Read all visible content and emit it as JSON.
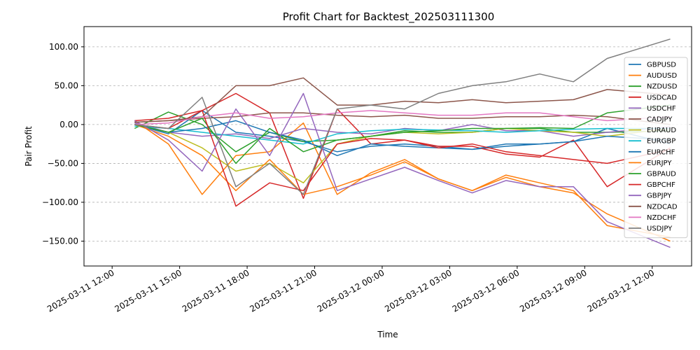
{
  "chart_data": {
    "type": "line",
    "title": "Profit Chart for Backtest_202503111300",
    "xlabel": "Time",
    "ylabel": "Pair Profit",
    "xlim_hours": [
      -1.25,
      25.75
    ],
    "ylim": [
      -182,
      126
    ],
    "grid": true,
    "legend_position": "right",
    "x_ticks": [
      {
        "h": 0,
        "label": "2025-03-11 12:00"
      },
      {
        "h": 3,
        "label": "2025-03-11 15:00"
      },
      {
        "h": 6,
        "label": "2025-03-11 18:00"
      },
      {
        "h": 9,
        "label": "2025-03-11 21:00"
      },
      {
        "h": 12,
        "label": "2025-03-12 00:00"
      },
      {
        "h": 15,
        "label": "2025-03-12 03:00"
      },
      {
        "h": 18,
        "label": "2025-03-12 06:00"
      },
      {
        "h": 21,
        "label": "2025-03-12 09:00"
      },
      {
        "h": 24,
        "label": "2025-03-12 12:00"
      }
    ],
    "y_ticks": [
      {
        "v": 100,
        "label": "100.00"
      },
      {
        "v": 50,
        "label": "50.00"
      },
      {
        "v": 0,
        "label": "0.00"
      },
      {
        "v": -50,
        "label": "−50.00"
      },
      {
        "v": -100,
        "label": "−100.00"
      },
      {
        "v": -150,
        "label": "−150.00"
      }
    ],
    "x_hours": [
      1,
      2.5,
      4,
      5.5,
      7,
      8.5,
      10,
      11.5,
      13,
      14.5,
      16,
      17.5,
      19,
      20.5,
      22,
      24.8
    ],
    "series": [
      {
        "name": "GBPUSD",
        "color": "#1f77b4",
        "values": [
          0,
          -12,
          18,
          -10,
          -15,
          -22,
          -35,
          -28,
          -25,
          -28,
          -32,
          -28,
          -25,
          -22,
          -5,
          -25
        ]
      },
      {
        "name": "AUDUSD",
        "color": "#ff7f0e",
        "values": [
          5,
          -25,
          -90,
          -40,
          -35,
          2,
          -90,
          -62,
          -45,
          -70,
          -85,
          -65,
          -75,
          -85,
          -130,
          -145
        ]
      },
      {
        "name": "NZDUSD",
        "color": "#2ca02c",
        "values": [
          -5,
          16,
          0,
          -35,
          -10,
          -22,
          -20,
          -15,
          -8,
          -10,
          -10,
          -5,
          -5,
          -10,
          -10,
          -8
        ]
      },
      {
        "name": "USDCAD",
        "color": "#d62728",
        "values": [
          5,
          8,
          18,
          40,
          15,
          -95,
          20,
          -25,
          -20,
          -28,
          -28,
          -38,
          -42,
          -20,
          -80,
          -30
        ]
      },
      {
        "name": "USDCHF",
        "color": "#9467bd",
        "values": [
          2,
          -10,
          -15,
          -12,
          -18,
          -5,
          -10,
          -12,
          -5,
          -8,
          0,
          -8,
          -8,
          -15,
          -10,
          -3
        ]
      },
      {
        "name": "CADJPY",
        "color": "#8c564b",
        "values": [
          3,
          5,
          8,
          10,
          15,
          15,
          12,
          10,
          12,
          8,
          8,
          10,
          10,
          12,
          10,
          0
        ]
      },
      {
        "name": "EURAUD",
        "color": "#bcbd22",
        "values": [
          0,
          -10,
          -30,
          -60,
          -50,
          -75,
          -25,
          -15,
          -10,
          -12,
          -10,
          -5,
          -8,
          -10,
          -15,
          -5
        ]
      },
      {
        "name": "EURGBP",
        "color": "#17becf",
        "values": [
          -2,
          -5,
          -10,
          -15,
          -20,
          -25,
          -12,
          -8,
          -6,
          -7,
          -8,
          -10,
          -8,
          -6,
          -5,
          -5
        ]
      },
      {
        "name": "EURCHF",
        "color": "#1f77b4",
        "values": [
          0,
          -10,
          -5,
          5,
          -10,
          -20,
          -40,
          -25,
          -28,
          -30,
          -32,
          -25,
          -25,
          -22,
          -15,
          -20
        ]
      },
      {
        "name": "EURJPY",
        "color": "#ff7f0e",
        "values": [
          0,
          -15,
          -40,
          -85,
          -45,
          -90,
          -80,
          -65,
          -48,
          -70,
          -85,
          -68,
          -80,
          -88,
          -115,
          -150
        ]
      },
      {
        "name": "GBPAUD",
        "color": "#2ca02c",
        "values": [
          0,
          -10,
          8,
          -50,
          -5,
          -35,
          -20,
          -15,
          -10,
          -8,
          -5,
          -5,
          -4,
          -5,
          15,
          25
        ]
      },
      {
        "name": "GBPCHF",
        "color": "#d62728",
        "values": [
          0,
          -5,
          18,
          -105,
          -75,
          -85,
          -25,
          -18,
          -20,
          -30,
          -25,
          -35,
          -40,
          -45,
          -50,
          -32
        ]
      },
      {
        "name": "GBPJPY",
        "color": "#9467bd",
        "values": [
          5,
          -20,
          -60,
          20,
          -40,
          40,
          -85,
          -70,
          -55,
          -72,
          -88,
          -72,
          -80,
          -80,
          -125,
          -158
        ]
      },
      {
        "name": "NZDCAD",
        "color": "#8c564b",
        "values": [
          3,
          5,
          10,
          50,
          50,
          60,
          25,
          25,
          30,
          28,
          32,
          28,
          30,
          32,
          45,
          38
        ]
      },
      {
        "name": "NZDCHF",
        "color": "#e377c2",
        "values": [
          0,
          2,
          10,
          15,
          8,
          10,
          15,
          18,
          15,
          12,
          12,
          15,
          15,
          10,
          5,
          10
        ]
      },
      {
        "name": "USDJPY",
        "color": "#7f7f7f",
        "values": [
          0,
          -5,
          35,
          -80,
          -50,
          -90,
          20,
          25,
          20,
          40,
          50,
          55,
          65,
          55,
          85,
          110
        ]
      }
    ]
  }
}
